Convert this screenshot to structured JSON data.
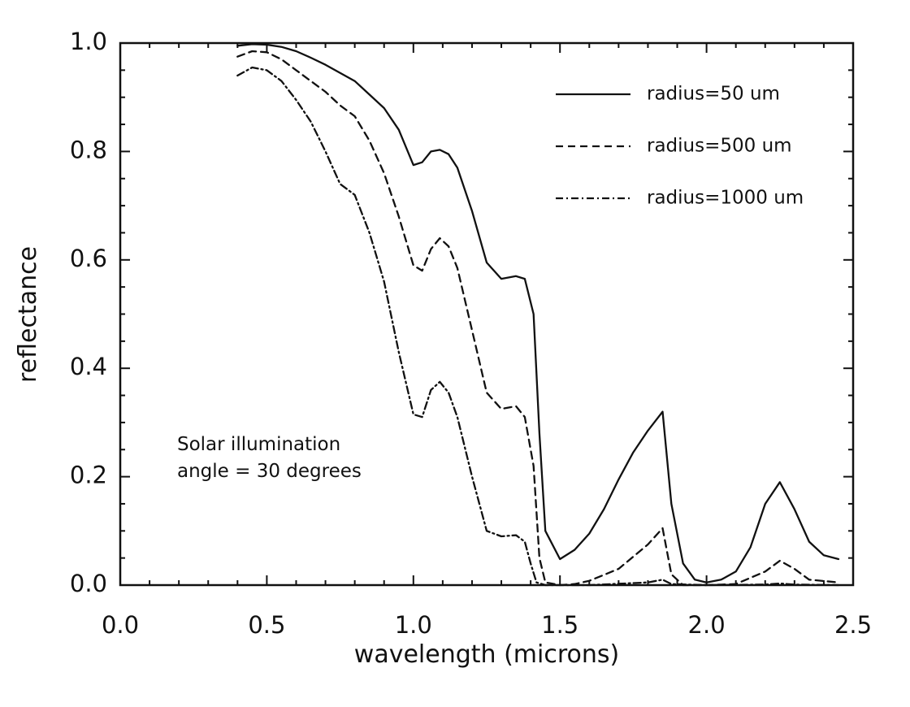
{
  "chart_data": {
    "type": "line",
    "xlabel": "wavelength (microns)",
    "ylabel": "reflectance",
    "xlim": [
      0.0,
      2.5
    ],
    "ylim": [
      0.0,
      1.0
    ],
    "xticks": [
      "0.0",
      "0.5",
      "1.0",
      "1.5",
      "2.0",
      "2.5"
    ],
    "yticks": [
      "0.0",
      "0.2",
      "0.4",
      "0.6",
      "0.8",
      "1.0"
    ],
    "grid": false,
    "legend_position": "top-right",
    "annotation": [
      "Solar illumination",
      "angle = 30 degrees"
    ],
    "series": [
      {
        "name": "radius=50 um",
        "line_style": "solid",
        "x": [
          0.4,
          0.45,
          0.5,
          0.55,
          0.6,
          0.65,
          0.7,
          0.75,
          0.8,
          0.85,
          0.9,
          0.95,
          1.0,
          1.03,
          1.06,
          1.09,
          1.12,
          1.15,
          1.2,
          1.25,
          1.3,
          1.35,
          1.38,
          1.41,
          1.43,
          1.45,
          1.5,
          1.55,
          1.6,
          1.65,
          1.7,
          1.75,
          1.8,
          1.85,
          1.88,
          1.92,
          1.96,
          2.0,
          2.05,
          2.1,
          2.15,
          2.2,
          2.25,
          2.3,
          2.35,
          2.4,
          2.45
        ],
        "values": [
          0.995,
          0.998,
          0.997,
          0.993,
          0.985,
          0.973,
          0.96,
          0.945,
          0.93,
          0.905,
          0.88,
          0.84,
          0.775,
          0.78,
          0.8,
          0.803,
          0.795,
          0.77,
          0.69,
          0.595,
          0.565,
          0.57,
          0.565,
          0.5,
          0.28,
          0.1,
          0.048,
          0.065,
          0.095,
          0.14,
          0.195,
          0.245,
          0.285,
          0.32,
          0.15,
          0.04,
          0.01,
          0.005,
          0.01,
          0.025,
          0.07,
          0.15,
          0.19,
          0.14,
          0.08,
          0.055,
          0.048
        ]
      },
      {
        "name": "radius=500 um",
        "line_style": "dashed",
        "x": [
          0.4,
          0.45,
          0.5,
          0.55,
          0.6,
          0.65,
          0.7,
          0.75,
          0.8,
          0.85,
          0.9,
          0.95,
          1.0,
          1.03,
          1.06,
          1.09,
          1.12,
          1.15,
          1.2,
          1.25,
          1.3,
          1.35,
          1.38,
          1.41,
          1.43,
          1.45,
          1.5,
          1.55,
          1.6,
          1.7,
          1.8,
          1.85,
          1.88,
          1.92,
          2.0,
          2.1,
          2.2,
          2.25,
          2.3,
          2.35,
          2.45
        ],
        "values": [
          0.975,
          0.985,
          0.983,
          0.97,
          0.95,
          0.93,
          0.91,
          0.885,
          0.865,
          0.82,
          0.76,
          0.68,
          0.59,
          0.58,
          0.62,
          0.64,
          0.625,
          0.585,
          0.47,
          0.355,
          0.325,
          0.33,
          0.31,
          0.22,
          0.05,
          0.005,
          0.0,
          0.002,
          0.008,
          0.03,
          0.075,
          0.105,
          0.02,
          0.0,
          0.0,
          0.002,
          0.025,
          0.045,
          0.03,
          0.01,
          0.005
        ]
      },
      {
        "name": "radius=1000 um",
        "line_style": "dash-dot",
        "x": [
          0.4,
          0.45,
          0.5,
          0.55,
          0.6,
          0.65,
          0.7,
          0.75,
          0.8,
          0.85,
          0.9,
          0.95,
          1.0,
          1.03,
          1.06,
          1.09,
          1.12,
          1.15,
          1.2,
          1.25,
          1.3,
          1.35,
          1.38,
          1.4,
          1.42,
          1.45,
          1.6,
          1.8,
          1.85,
          1.88,
          2.0,
          2.2,
          2.25,
          2.3,
          2.45
        ],
        "values": [
          0.94,
          0.955,
          0.95,
          0.93,
          0.895,
          0.855,
          0.8,
          0.74,
          0.72,
          0.65,
          0.56,
          0.43,
          0.315,
          0.31,
          0.36,
          0.375,
          0.355,
          0.31,
          0.2,
          0.1,
          0.09,
          0.092,
          0.08,
          0.04,
          0.005,
          0.0,
          0.0,
          0.005,
          0.01,
          0.002,
          0.0,
          0.001,
          0.003,
          0.001,
          0.0
        ]
      }
    ]
  }
}
